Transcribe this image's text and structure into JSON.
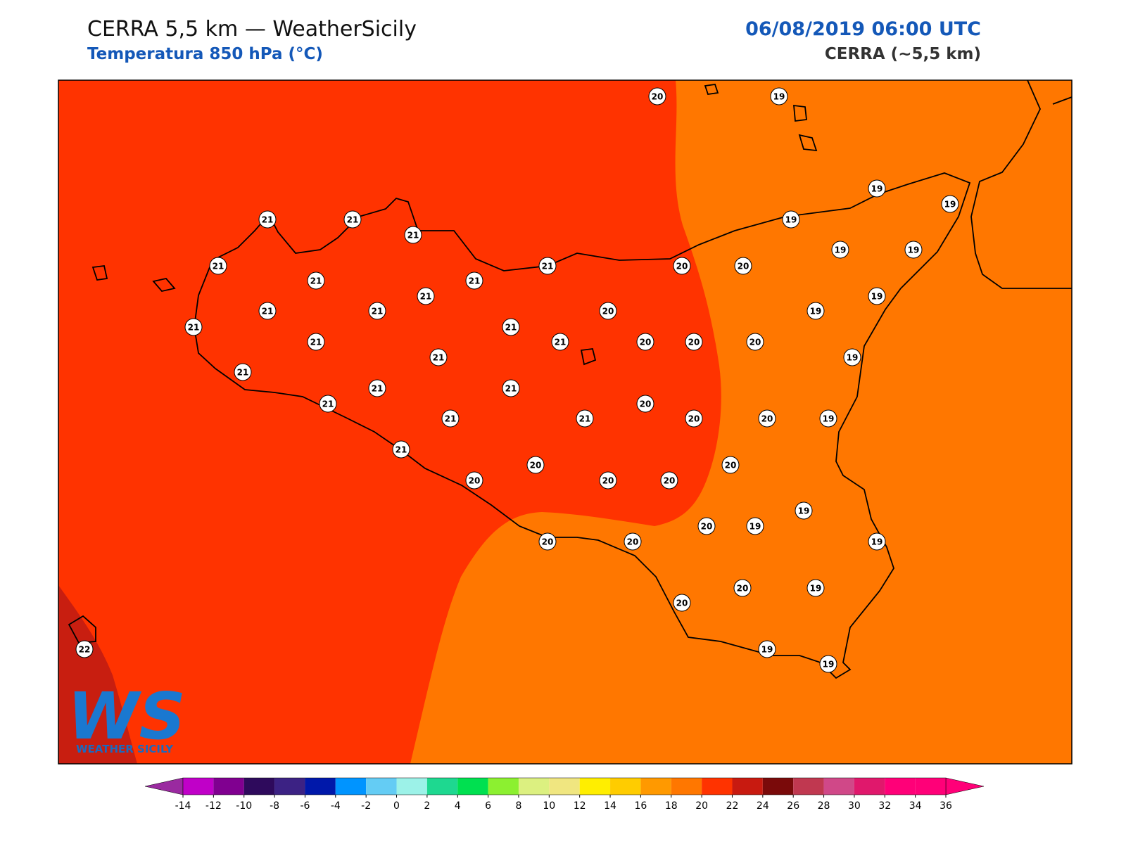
{
  "map": {
    "title": "CERRA 5,5 km — WeatherSicily",
    "subtitle": "Temperatura 850 hPa (°C)",
    "datetime": "06/08/2019 06:00 UTC",
    "model": "CERRA (~5,5 km)",
    "logo": {
      "mark": "WS",
      "text": "WEATHER SICILY"
    },
    "stations": [
      20,
      19,
      19,
      19,
      21,
      21,
      21,
      19,
      19,
      19,
      21,
      21,
      20,
      20,
      21,
      21,
      21,
      19,
      21,
      21,
      20,
      19,
      21,
      21,
      21,
      21,
      20,
      20,
      20,
      21,
      19,
      21,
      21,
      21,
      20,
      21,
      21,
      21,
      20,
      20,
      19,
      21,
      20,
      20,
      20,
      20,
      20,
      19,
      20,
      19,
      20,
      20,
      19,
      20,
      20,
      19,
      19,
      19,
      22
    ],
    "colorbar": {
      "ticks": [
        -14,
        -12,
        -10,
        -8,
        -6,
        -4,
        -2,
        0,
        2,
        4,
        6,
        8,
        10,
        12,
        14,
        16,
        18,
        20,
        22,
        24,
        26,
        28,
        30,
        32,
        34,
        36
      ],
      "colors": [
        "#c000c8",
        "#800090",
        "#2e0a5c",
        "#3c2284",
        "#0018aa",
        "#0094ff",
        "#64ccf4",
        "#9cf2e8",
        "#1ed890",
        "#00e050",
        "#8cf030",
        "#dcf080",
        "#f0e680",
        "#ffee00",
        "#ffcc00",
        "#ff9900",
        "#ff7700",
        "#ff3300",
        "#c81a10",
        "#7a0a0a",
        "#c03850",
        "#d04888",
        "#e0186c",
        "#ff0078",
        "#ff0078"
      ],
      "under_color": "#9a2aa0",
      "over_color": "#ff0078"
    }
  }
}
